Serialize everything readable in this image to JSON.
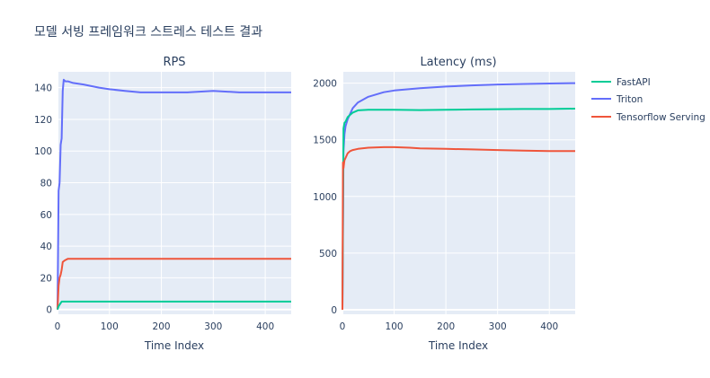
{
  "title": "모델 서빙 프레임워크 스트레스 테스트 결과",
  "legend": [
    {
      "name": "FastAPI",
      "color": "#00cc96"
    },
    {
      "name": "Triton",
      "color": "#636efa"
    },
    {
      "name": "Tensorflow Serving",
      "color": "#ef553b"
    }
  ],
  "chart_data": [
    {
      "type": "line",
      "title": "RPS",
      "xlabel": "Time Index",
      "ylabel": "",
      "xlim": [
        0,
        450
      ],
      "ylim": [
        -3,
        150
      ],
      "xticks": [
        0,
        100,
        200,
        300,
        400
      ],
      "yticks": [
        0,
        20,
        40,
        60,
        80,
        100,
        120,
        140
      ],
      "grid": true,
      "series": [
        {
          "name": "Triton",
          "color": "#636efa",
          "x": [
            0,
            2,
            4,
            6,
            8,
            10,
            12,
            15,
            20,
            30,
            50,
            80,
            100,
            130,
            160,
            200,
            250,
            300,
            350,
            400,
            450
          ],
          "y": [
            0,
            75,
            80,
            104,
            108,
            138,
            145,
            144,
            144,
            143,
            142,
            140,
            139,
            138,
            137,
            137,
            137,
            138,
            137,
            137,
            137
          ]
        },
        {
          "name": "Tensorflow Serving",
          "color": "#ef553b",
          "x": [
            0,
            2,
            4,
            6,
            8,
            10,
            14,
            20,
            50,
            100,
            150,
            200,
            250,
            300,
            350,
            400,
            450
          ],
          "y": [
            0,
            15,
            20,
            22,
            25,
            30,
            31,
            32,
            32,
            32,
            32,
            32,
            32,
            32,
            32,
            32,
            32
          ]
        },
        {
          "name": "FastAPI",
          "color": "#00cc96",
          "x": [
            0,
            2,
            4,
            6,
            8,
            10,
            20,
            50,
            100,
            150,
            200,
            250,
            300,
            350,
            400,
            450
          ],
          "y": [
            0,
            2,
            3,
            4,
            5,
            5,
            5,
            5,
            5,
            5,
            5,
            5,
            5,
            5,
            5,
            5
          ]
        }
      ]
    },
    {
      "type": "line",
      "title": "Latency (ms)",
      "xlabel": "Time Index",
      "ylabel": "",
      "xlim": [
        0,
        450
      ],
      "ylim": [
        -40,
        2100
      ],
      "xticks": [
        0,
        100,
        200,
        300,
        400
      ],
      "yticks": [
        0,
        500,
        1000,
        1500,
        2000
      ],
      "grid": true,
      "series": [
        {
          "name": "Triton",
          "color": "#636efa",
          "x": [
            0,
            2,
            4,
            6,
            10,
            15,
            20,
            30,
            50,
            80,
            100,
            150,
            200,
            250,
            300,
            350,
            400,
            450
          ],
          "y": [
            0,
            1400,
            1550,
            1620,
            1680,
            1730,
            1780,
            1830,
            1880,
            1920,
            1935,
            1955,
            1970,
            1980,
            1988,
            1993,
            1997,
            2000
          ]
        },
        {
          "name": "FastAPI",
          "color": "#00cc96",
          "x": [
            0,
            2,
            4,
            6,
            10,
            15,
            20,
            30,
            50,
            100,
            150,
            200,
            250,
            300,
            350,
            400,
            450
          ],
          "y": [
            0,
            1600,
            1650,
            1660,
            1700,
            1720,
            1740,
            1760,
            1765,
            1765,
            1762,
            1765,
            1768,
            1770,
            1772,
            1772,
            1775
          ]
        },
        {
          "name": "Tensorflow Serving",
          "color": "#ef553b",
          "x": [
            0,
            1,
            2,
            4,
            6,
            10,
            15,
            20,
            30,
            50,
            80,
            100,
            130,
            150,
            200,
            250,
            300,
            350,
            400,
            450
          ],
          "y": [
            0,
            1300,
            1250,
            1320,
            1340,
            1380,
            1400,
            1410,
            1420,
            1430,
            1435,
            1435,
            1430,
            1425,
            1420,
            1415,
            1410,
            1405,
            1400,
            1400
          ]
        }
      ]
    }
  ]
}
